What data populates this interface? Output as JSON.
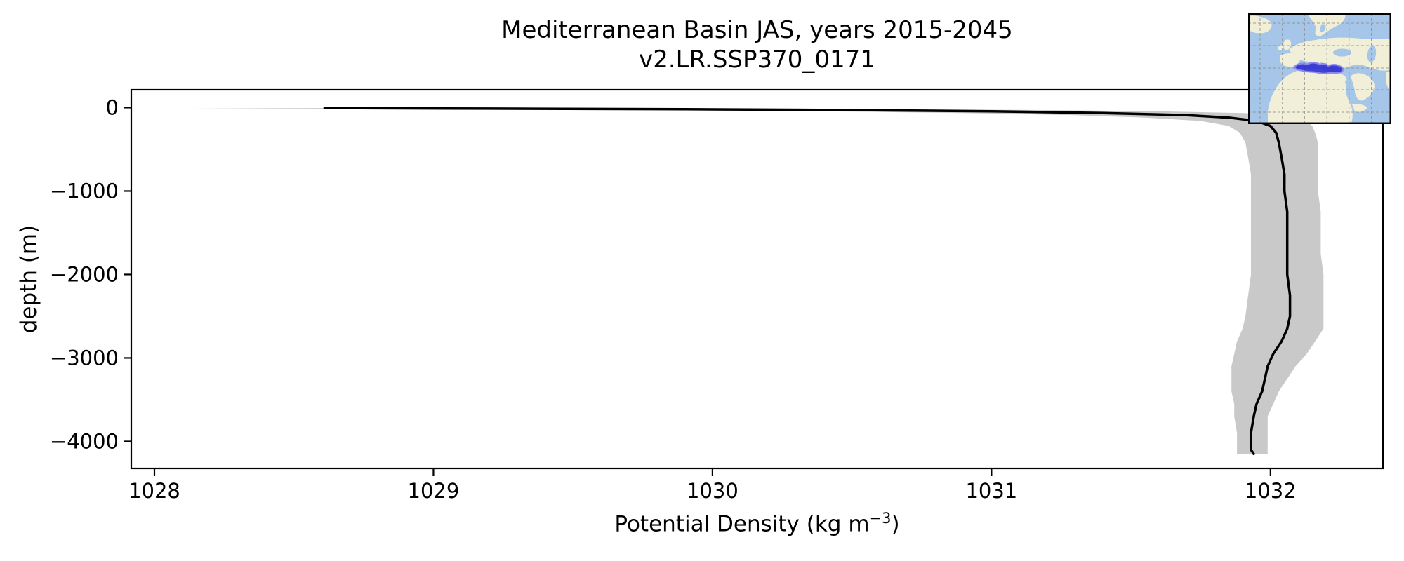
{
  "figure": {
    "title_line1": "Mediterranean Basin JAS, years 2015-2045",
    "title_line2": "v2.LR.SSP370_0171",
    "background_color": "#ffffff"
  },
  "axes": {
    "xlabel_prefix": "Potential Density (kg m",
    "xlabel_sup": "−3",
    "xlabel_suffix": ")",
    "ylabel": "depth (m)",
    "spine_color": "#000000"
  },
  "chart_data": {
    "type": "line",
    "title": "Mediterranean Basin JAS, years 2015-2045",
    "subtitle": "v2.LR.SSP370_0171",
    "xlabel": "Potential Density (kg m^-3)",
    "ylabel": "depth (m)",
    "xlim": [
      1027.917,
      1032.403
    ],
    "ylim": [
      214,
      -4324
    ],
    "grid": false,
    "legend": "none",
    "x_ticks": {
      "values": [
        1028,
        1029,
        1030,
        1031,
        1032
      ],
      "labels": [
        "1028",
        "1029",
        "1030",
        "1031",
        "1032"
      ]
    },
    "y_ticks": {
      "values": [
        0,
        -1000,
        -2000,
        -3000,
        -4000
      ],
      "labels": [
        "0",
        "−1000",
        "−2000",
        "−3000",
        "−4000"
      ]
    },
    "series": [
      {
        "name": "mean_potential_density_profile",
        "color": "#000000",
        "linewidth": 3.5,
        "depth_m": [
          -5,
          -12,
          -20,
          -30,
          -45,
          -65,
          -90,
          -120,
          -160,
          -220,
          -300,
          -420,
          -600,
          -800,
          -1000,
          -1250,
          -1500,
          -1750,
          -2000,
          -2250,
          -2500,
          -2650,
          -2800,
          -2950,
          -3100,
          -3250,
          -3400,
          -3550,
          -3700,
          -3900,
          -4100,
          -4150
        ],
        "values": [
          1028.61,
          1029.2,
          1029.9,
          1030.5,
          1031.0,
          1031.4,
          1031.7,
          1031.85,
          1031.95,
          1032.0,
          1032.02,
          1032.03,
          1032.04,
          1032.05,
          1032.05,
          1032.06,
          1032.06,
          1032.06,
          1032.06,
          1032.07,
          1032.07,
          1032.06,
          1032.04,
          1032.01,
          1031.99,
          1031.98,
          1031.97,
          1031.95,
          1031.94,
          1031.93,
          1031.93,
          1031.94
        ]
      }
    ],
    "band": {
      "name": "shaded_spread_band",
      "color": "#c9c9c9",
      "depth_m": [
        -5,
        -12,
        -20,
        -30,
        -45,
        -65,
        -90,
        -120,
        -160,
        -220,
        -300,
        -420,
        -600,
        -800,
        -1000,
        -1250,
        -1500,
        -1750,
        -2000,
        -2250,
        -2500,
        -2650,
        -2800,
        -2950,
        -3100,
        -3250,
        -3400,
        -3550,
        -3700,
        -3900,
        -4100,
        -4150
      ],
      "lower": [
        1028.12,
        1028.5,
        1029.1,
        1029.8,
        1030.4,
        1030.9,
        1031.3,
        1031.55,
        1031.75,
        1031.85,
        1031.89,
        1031.91,
        1031.92,
        1031.93,
        1031.93,
        1031.93,
        1031.93,
        1031.93,
        1031.93,
        1031.92,
        1031.91,
        1031.9,
        1031.88,
        1031.87,
        1031.86,
        1031.86,
        1031.86,
        1031.87,
        1031.87,
        1031.88,
        1031.88,
        1031.88
      ],
      "upper": [
        1029.1,
        1029.9,
        1030.6,
        1031.2,
        1031.6,
        1031.9,
        1032.05,
        1032.1,
        1032.13,
        1032.15,
        1032.16,
        1032.17,
        1032.17,
        1032.17,
        1032.17,
        1032.18,
        1032.18,
        1032.18,
        1032.19,
        1032.19,
        1032.19,
        1032.19,
        1032.16,
        1032.13,
        1032.09,
        1032.06,
        1032.03,
        1032.01,
        1031.99,
        1031.99,
        1031.99,
        1031.99
      ]
    }
  },
  "inset_map": {
    "region": "Mediterranean Basin",
    "ocean_color": "#a5c5e9",
    "land_color": "#f2efd9",
    "gridline_color": "#8f8f8f",
    "highlight_fill": "#2e2ed2",
    "highlight_edge": "#8888ee",
    "border_color": "#000000"
  }
}
